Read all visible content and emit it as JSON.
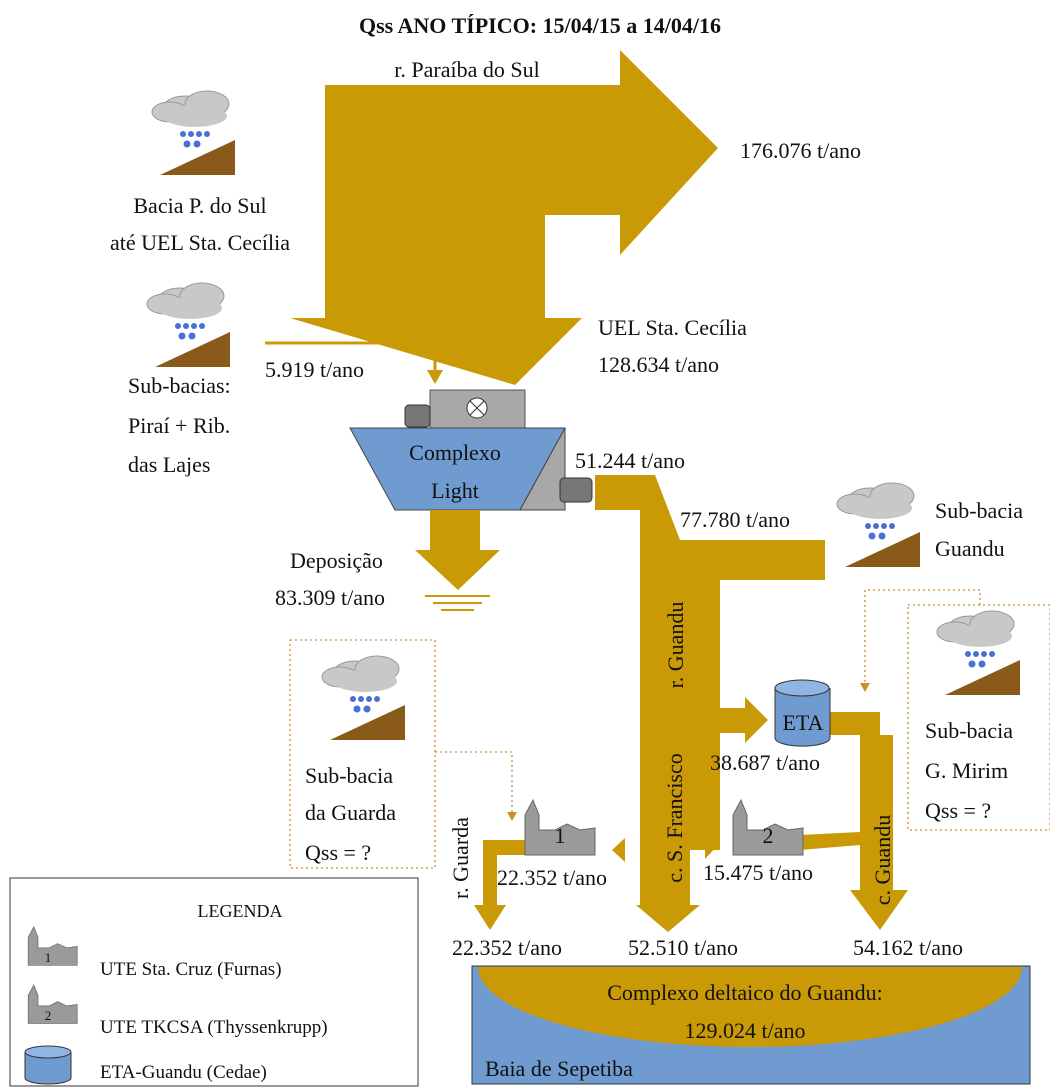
{
  "title": "Qss ANO TÍPICO: 15/04/15 a 14/04/16",
  "paraiba": {
    "name": "r. Paraíba do Sul",
    "outflow": "176.076 t/ano"
  },
  "bacia_psul": [
    "Bacia P. do Sul",
    "até UEL Sta. Cecília"
  ],
  "uel": [
    "UEL Sta. Cecília",
    "128.634 t/ano"
  ],
  "pirai": {
    "inflow": "5.919 t/ano",
    "lines": [
      "Sub-bacias:",
      "Piraí + Rib.",
      "das Lajes"
    ]
  },
  "light": {
    "lines": [
      "Complexo",
      "Light"
    ],
    "outflow": "51.244 t/ano"
  },
  "guandu_sub": {
    "inflow": "77.780 t/ano",
    "lines": [
      "Sub-bacia",
      "Guandu"
    ]
  },
  "deposicao": [
    "Deposição",
    "83.309 t/ano"
  ],
  "r_guandu": "r. Guandu",
  "eta": {
    "label": "ETA",
    "flow": "38.687 t/ano"
  },
  "mirim": [
    "Sub-bacia",
    "G. Mirim",
    "Qss = ?"
  ],
  "guarda_sub": [
    "Sub-bacia",
    "da Guarda",
    "Qss = ?"
  ],
  "r_guarda": "r. Guarda",
  "ute1": {
    "label": "1",
    "flow": "22.352 t/ano"
  },
  "c_sfrancisco": "c. S. Francisco",
  "ute2": {
    "label": "2",
    "flow": "15.475 t/ano"
  },
  "c_guandu": "c. Guandu",
  "outlets": [
    "22.352 t/ano",
    "52.510 t/ano",
    "54.162 t/ano"
  ],
  "delta": [
    "Complexo deltaico do Guandu:",
    "129.024 t/ano"
  ],
  "baia": "Baia de Sepetiba",
  "legend": {
    "title": "LEGENDA",
    "items": [
      {
        "icon": "1",
        "label": "UTE Sta. Cruz (Furnas)"
      },
      {
        "icon": "2",
        "label": "UTE TKCSA (Thyssenkrupp)"
      },
      {
        "label": "ETA-Guandu (Cedae)"
      }
    ]
  }
}
